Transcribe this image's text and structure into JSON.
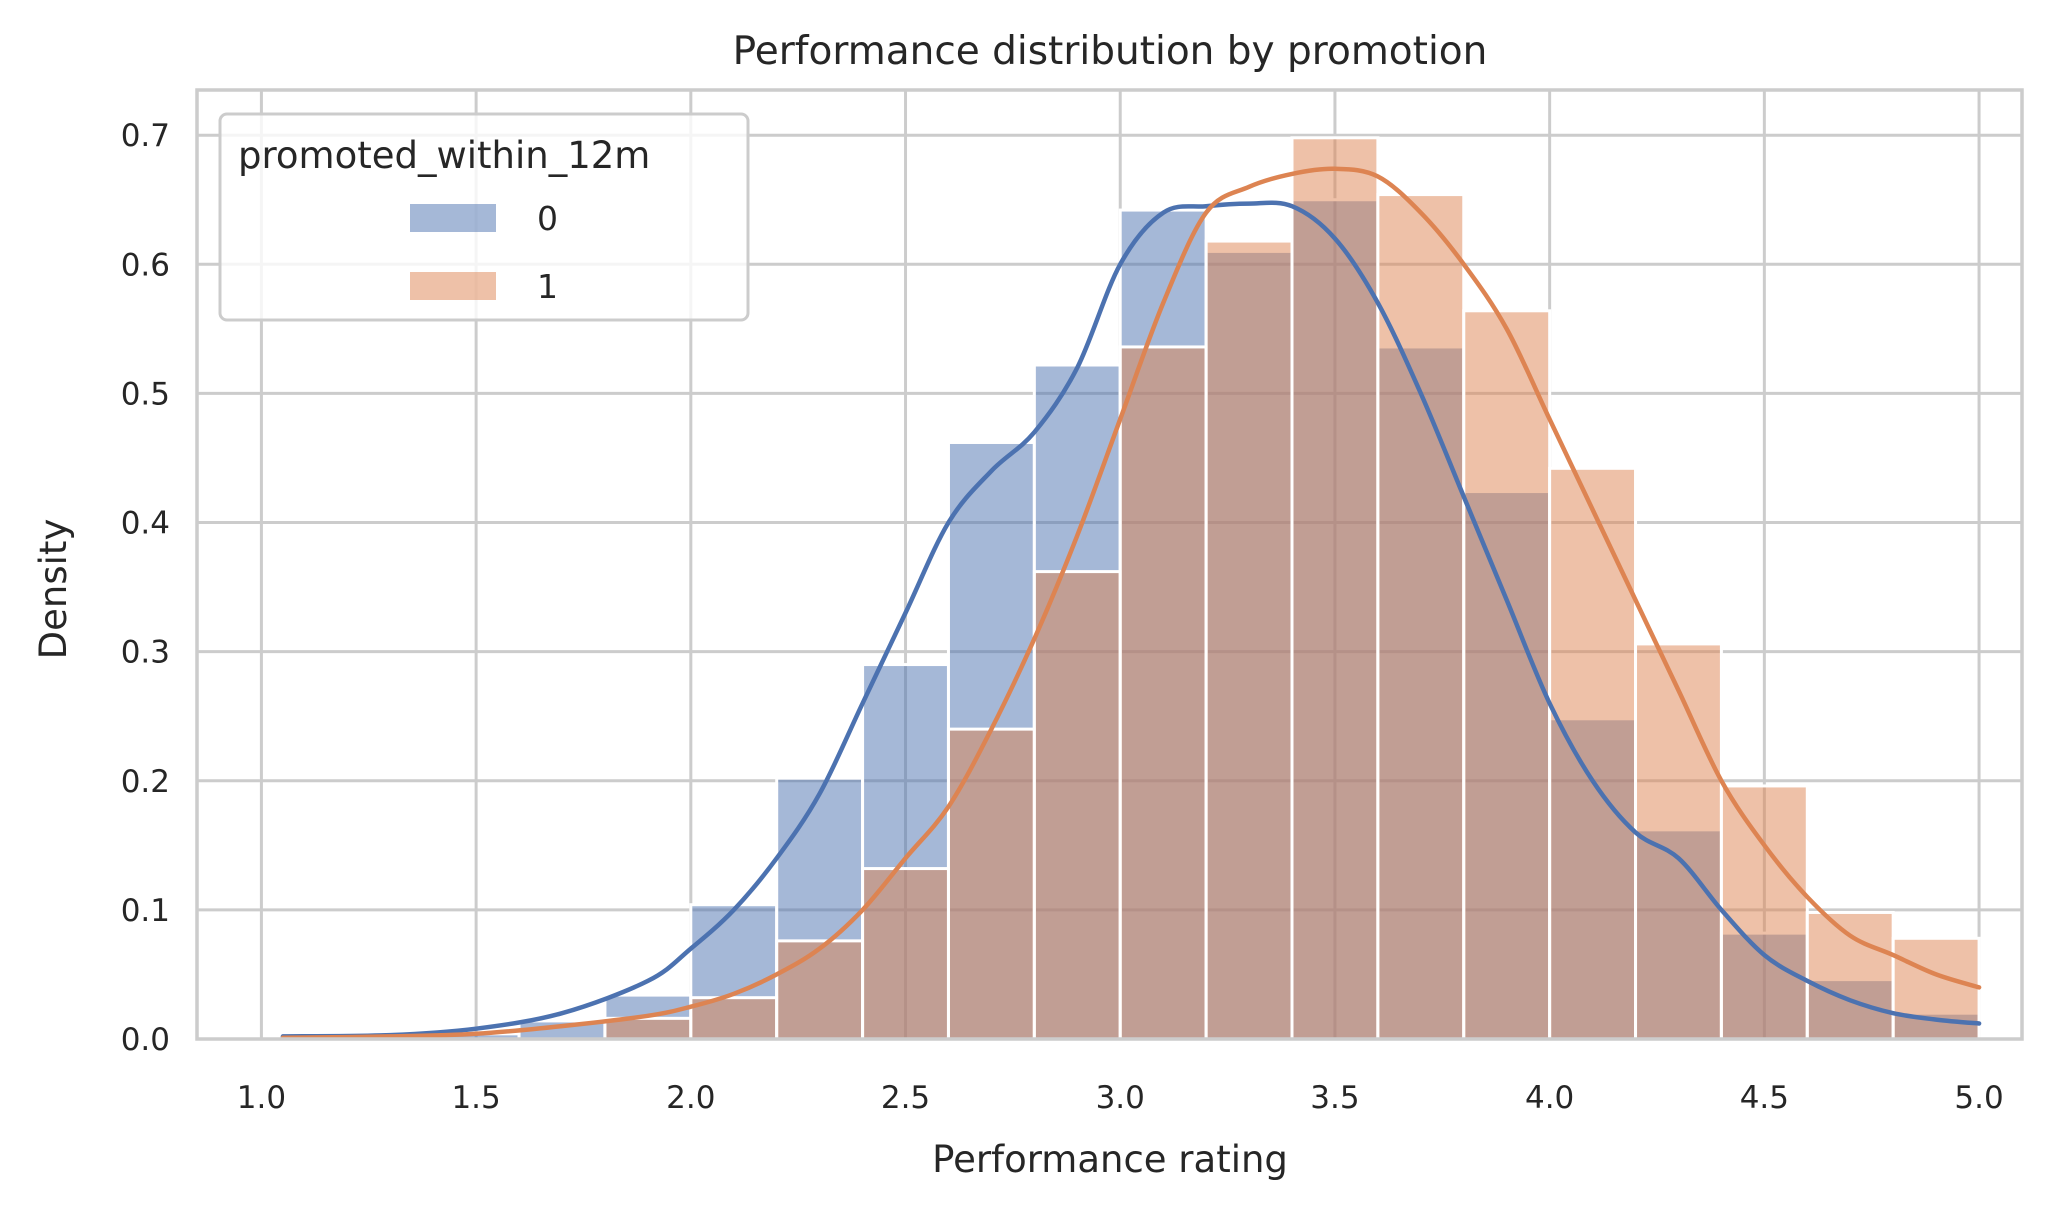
{
  "chart_data": {
    "type": "histogram",
    "title": "Performance distribution by promotion",
    "xlabel": "Performance rating",
    "ylabel": "Density",
    "xlim": [
      0.85,
      5.1
    ],
    "ylim": [
      0,
      0.7
    ],
    "x_ticks": [
      "1.0",
      "1.5",
      "2.0",
      "2.5",
      "3.0",
      "3.5",
      "4.0",
      "4.5",
      "5.0"
    ],
    "y_ticks": [
      "0.0",
      "0.1",
      "0.2",
      "0.3",
      "0.4",
      "0.5",
      "0.6",
      "0.7"
    ],
    "grid": true,
    "legend": {
      "title": "promoted_within_12m",
      "placement": "top-left"
    },
    "bin_edges": [
      1.0,
      1.2,
      1.4,
      1.6,
      1.8,
      2.0,
      2.2,
      2.4,
      2.6,
      2.8,
      3.0,
      3.2,
      3.4,
      3.6,
      3.8,
      4.0,
      4.2,
      4.4,
      4.6,
      4.8,
      5.0
    ],
    "series": [
      {
        "name": "0",
        "color": "#4c72b0",
        "density": [
          0.0,
          0.0,
          0.004,
          0.014,
          0.034,
          0.104,
          0.202,
          0.29,
          0.462,
          0.522,
          0.642,
          0.61,
          0.65,
          0.536,
          0.424,
          0.248,
          0.162,
          0.082,
          0.046,
          0.02
        ],
        "kde": {
          "x": [
            1.05,
            1.3,
            1.5,
            1.7,
            1.9,
            2.0,
            2.1,
            2.2,
            2.3,
            2.4,
            2.5,
            2.6,
            2.7,
            2.8,
            2.9,
            3.0,
            3.1,
            3.2,
            3.3,
            3.4,
            3.5,
            3.6,
            3.7,
            3.8,
            3.9,
            4.0,
            4.1,
            4.2,
            4.3,
            4.4,
            4.5,
            4.6,
            4.7,
            4.8,
            4.9,
            5.0
          ],
          "y": [
            0.002,
            0.003,
            0.008,
            0.02,
            0.045,
            0.07,
            0.1,
            0.14,
            0.19,
            0.26,
            0.33,
            0.4,
            0.44,
            0.47,
            0.52,
            0.6,
            0.64,
            0.645,
            0.647,
            0.645,
            0.62,
            0.57,
            0.5,
            0.42,
            0.34,
            0.26,
            0.2,
            0.16,
            0.14,
            0.1,
            0.065,
            0.045,
            0.03,
            0.02,
            0.015,
            0.012
          ]
        }
      },
      {
        "name": "1",
        "color": "#dd8452",
        "density": [
          0.0,
          0.0,
          0.0,
          0.0,
          0.016,
          0.032,
          0.076,
          0.132,
          0.24,
          0.362,
          0.536,
          0.618,
          0.698,
          0.654,
          0.564,
          0.442,
          0.306,
          0.196,
          0.098,
          0.078
        ],
        "kde": {
          "x": [
            1.05,
            1.3,
            1.5,
            1.7,
            1.9,
            2.0,
            2.1,
            2.2,
            2.3,
            2.4,
            2.5,
            2.6,
            2.7,
            2.8,
            2.9,
            3.0,
            3.1,
            3.2,
            3.3,
            3.4,
            3.5,
            3.6,
            3.7,
            3.8,
            3.9,
            4.0,
            4.1,
            4.2,
            4.3,
            4.4,
            4.5,
            4.6,
            4.7,
            4.8,
            4.9,
            5.0
          ],
          "y": [
            0.001,
            0.002,
            0.004,
            0.01,
            0.018,
            0.025,
            0.035,
            0.05,
            0.07,
            0.1,
            0.14,
            0.18,
            0.24,
            0.31,
            0.39,
            0.48,
            0.57,
            0.64,
            0.66,
            0.67,
            0.674,
            0.668,
            0.64,
            0.6,
            0.55,
            0.48,
            0.41,
            0.34,
            0.27,
            0.2,
            0.15,
            0.11,
            0.08,
            0.065,
            0.05,
            0.04
          ]
        }
      }
    ]
  }
}
